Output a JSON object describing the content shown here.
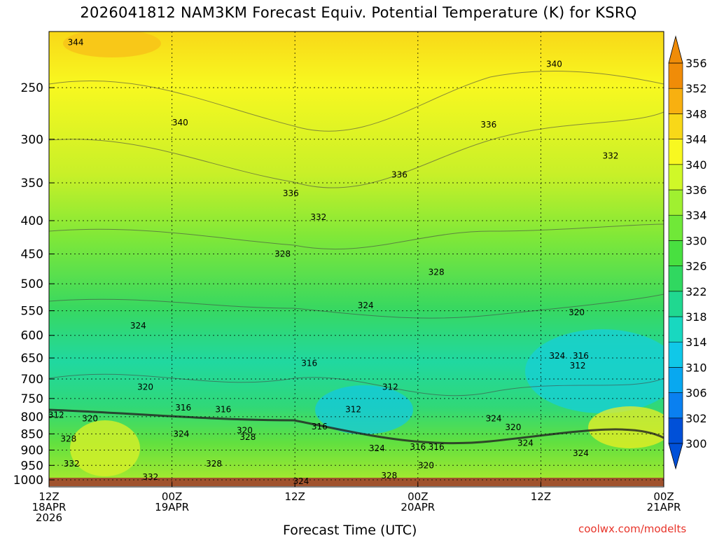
{
  "title": "2026041812 NAM3KM Forecast Equiv. Potential Temperature (K) for KSRQ",
  "xlabel": "Forecast Time (UTC)",
  "credit": "coolwx.com/modelts",
  "chart_data": {
    "type": "heatmap",
    "yaxis": {
      "label": "",
      "unit": "hPa",
      "scale": "log",
      "ylim": [
        1025,
        205
      ],
      "ticks": [
        250,
        300,
        350,
        400,
        450,
        500,
        550,
        600,
        650,
        700,
        750,
        800,
        850,
        900,
        950,
        1000
      ]
    },
    "xaxis": {
      "xlim": [
        0,
        60
      ],
      "ticks": [
        {
          "hour": 0,
          "lines": [
            "12Z",
            "18APR",
            "2026"
          ]
        },
        {
          "hour": 12,
          "lines": [
            "00Z",
            "19APR"
          ]
        },
        {
          "hour": 24,
          "lines": [
            "12Z"
          ]
        },
        {
          "hour": 36,
          "lines": [
            "00Z",
            "20APR"
          ]
        },
        {
          "hour": 48,
          "lines": [
            "12Z"
          ]
        },
        {
          "hour": 60,
          "lines": [
            "00Z",
            "21APR"
          ]
        }
      ],
      "grid": "dotted"
    },
    "colorbar": {
      "levels": [
        300,
        302,
        306,
        310,
        314,
        318,
        322,
        326,
        330,
        334,
        336,
        340,
        344,
        348,
        352,
        356
      ],
      "tick_labels": [
        "300",
        "302",
        "306",
        "310",
        "314",
        "318",
        "322",
        "326",
        "330",
        "334",
        "336",
        "340",
        "344",
        "348",
        "352",
        "356"
      ],
      "colors": [
        "#0050d8",
        "#0a80f0",
        "#08a8f0",
        "#10c8e8",
        "#18d8c0",
        "#20d890",
        "#30d860",
        "#48e040",
        "#70e838",
        "#a0f030",
        "#d0f828",
        "#f8f820",
        "#f8d818",
        "#f8b010",
        "#f08c08"
      ],
      "extend": "both"
    },
    "ground_color": "#a0522d",
    "contour_labels": [
      {
        "t": 2.6,
        "p": 213,
        "v": "344"
      },
      {
        "t": 49.3,
        "p": 230,
        "v": "340"
      },
      {
        "t": 12.8,
        "p": 283,
        "v": "340"
      },
      {
        "t": 42.9,
        "p": 285,
        "v": "336"
      },
      {
        "t": 54.8,
        "p": 318,
        "v": "332"
      },
      {
        "t": 34.2,
        "p": 340,
        "v": "336"
      },
      {
        "t": 23.6,
        "p": 363,
        "v": "336"
      },
      {
        "t": 26.3,
        "p": 395,
        "v": "332"
      },
      {
        "t": 22.8,
        "p": 450,
        "v": "328"
      },
      {
        "t": 37.8,
        "p": 480,
        "v": "328"
      },
      {
        "t": 30.9,
        "p": 540,
        "v": "324"
      },
      {
        "t": 8.7,
        "p": 580,
        "v": "324"
      },
      {
        "t": 51.5,
        "p": 553,
        "v": "320"
      },
      {
        "t": 49.6,
        "p": 645,
        "v": "324"
      },
      {
        "t": 51.9,
        "p": 645,
        "v": "316"
      },
      {
        "t": 51.6,
        "p": 668,
        "v": "312"
      },
      {
        "t": 25.4,
        "p": 662,
        "v": "316"
      },
      {
        "t": 33.3,
        "p": 720,
        "v": "312"
      },
      {
        "t": 9.4,
        "p": 720,
        "v": "320"
      },
      {
        "t": 13.1,
        "p": 775,
        "v": "316"
      },
      {
        "t": 17.0,
        "p": 780,
        "v": "316"
      },
      {
        "t": 29.7,
        "p": 780,
        "v": "312"
      },
      {
        "t": 0.7,
        "p": 795,
        "v": "312"
      },
      {
        "t": 4.0,
        "p": 805,
        "v": "320"
      },
      {
        "t": 19.1,
        "p": 840,
        "v": "320"
      },
      {
        "t": 26.4,
        "p": 828,
        "v": "316"
      },
      {
        "t": 19.4,
        "p": 860,
        "v": "328"
      },
      {
        "t": 12.9,
        "p": 850,
        "v": "324"
      },
      {
        "t": 1.9,
        "p": 865,
        "v": "328"
      },
      {
        "t": 43.4,
        "p": 805,
        "v": "324"
      },
      {
        "t": 45.3,
        "p": 830,
        "v": "320"
      },
      {
        "t": 46.5,
        "p": 878,
        "v": "324"
      },
      {
        "t": 37.8,
        "p": 890,
        "v": "316"
      },
      {
        "t": 36.0,
        "p": 890,
        "v": "316"
      },
      {
        "t": 32.0,
        "p": 895,
        "v": "324"
      },
      {
        "t": 51.9,
        "p": 910,
        "v": "324"
      },
      {
        "t": 36.8,
        "p": 950,
        "v": "320"
      },
      {
        "t": 2.2,
        "p": 945,
        "v": "332"
      },
      {
        "t": 16.1,
        "p": 945,
        "v": "328"
      },
      {
        "t": 9.9,
        "p": 990,
        "v": "332"
      },
      {
        "t": 33.2,
        "p": 985,
        "v": "328"
      },
      {
        "t": 24.6,
        "p": 1005,
        "v": "324"
      }
    ]
  }
}
